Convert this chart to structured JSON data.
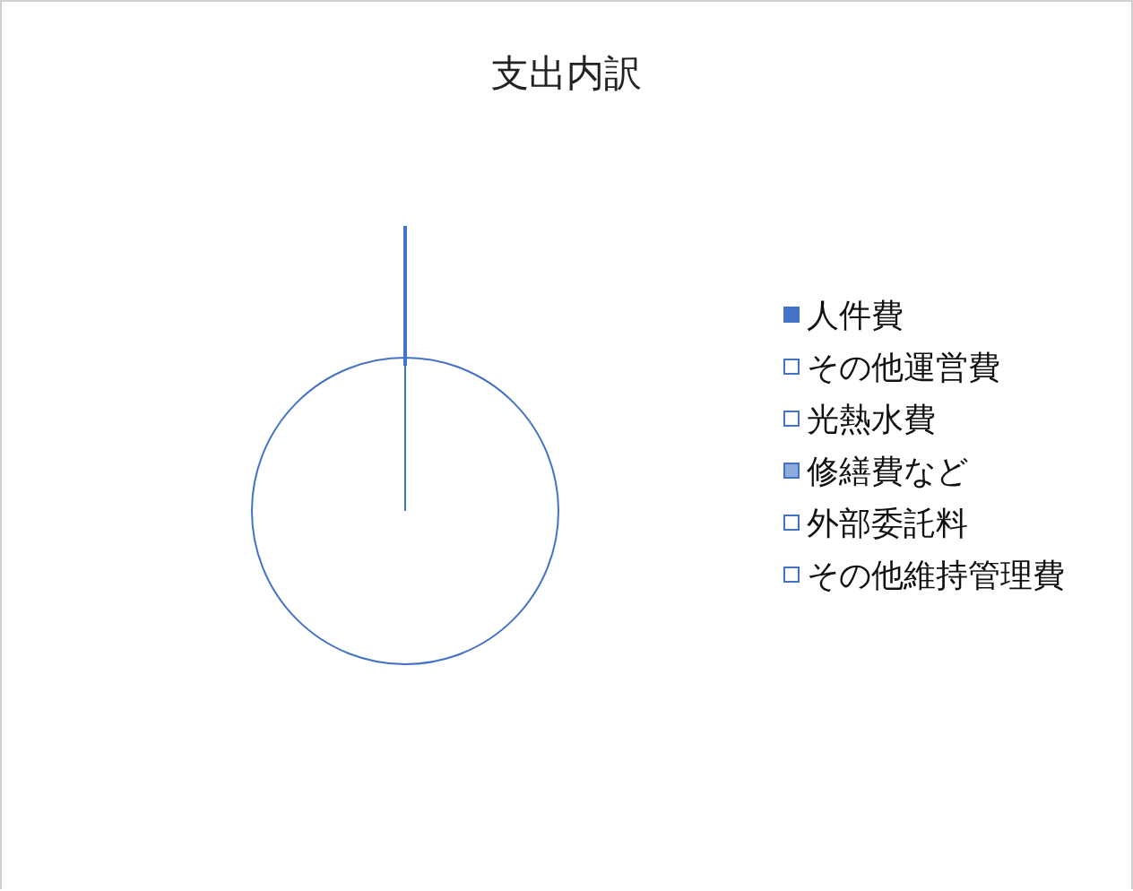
{
  "chart_data": {
    "type": "pie",
    "title": "支出内訳",
    "categories": [
      "人件費",
      "その他運営費",
      "光熱水費",
      "修繕費など",
      "外部委託料",
      "その他維持管理費"
    ],
    "values": [
      0,
      0,
      0,
      0,
      100,
      0
    ],
    "colors": [
      "#4472c4",
      "#ffffff",
      "#ffffff",
      "#8faadc",
      "#ffffff",
      "#ffffff"
    ],
    "legend": "right"
  }
}
